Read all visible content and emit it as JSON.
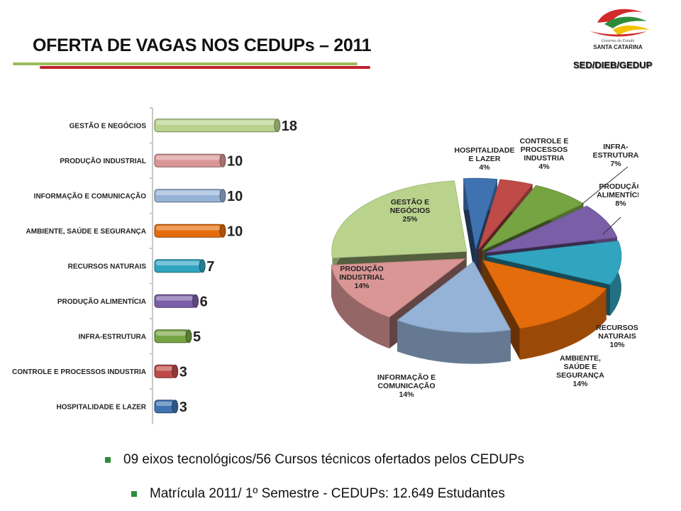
{
  "slide": {
    "title": "OFERTA DE VAGAS NOS CEDUPs – 2011",
    "org": "SED/DIEB/GEDUP",
    "logo": {
      "subtitle": "Governo do Estado",
      "name": "SANTA CATARINA"
    }
  },
  "bullets": [
    "09 eixos tecnológicos/56 Cursos técnicos ofertados pelos CEDUPs",
    "Matrícula 2011/ 1º Semestre - CEDUPs: 12.649 Estudantes"
  ],
  "chart_data": [
    {
      "type": "bar",
      "orientation": "horizontal",
      "categories": [
        "GESTÃO E NEGÓCIOS",
        "PRODUÇÃO INDUSTRIAL",
        "INFORMAÇÃO E COMUNICAÇÃO",
        "AMBIENTE, SAÚDE E SEGURANÇA",
        "RECURSOS NATURAIS",
        "PRODUÇÃO ALIMENTÍCIA",
        "INFRA-ESTRUTURA",
        "CONTROLE E PROCESSOS INDUSTRIA",
        "HOSPITALIDADE E LAZER"
      ],
      "values": [
        18,
        10,
        10,
        10,
        7,
        6,
        5,
        3,
        3
      ],
      "colors": [
        "#b9d38c",
        "#d99694",
        "#95b3d7",
        "#e46c0a",
        "#31a5c0",
        "#7a5ea8",
        "#77a442",
        "#be4b48",
        "#3f72b0"
      ],
      "xlim": [
        0,
        20
      ],
      "grid": false,
      "legend": "none"
    },
    {
      "type": "pie",
      "labels": [
        "HOSPITALIDADE E LAZER",
        "CONTROLE E PROCESSOS INDUSTRIA",
        "INFRA-ESTRUTURA",
        "PRODUÇÃO ALIMENTÍCIA",
        "RECURSOS NATURAIS",
        "AMBIENTE, SAÚDE E SEGURANÇA",
        "INFORMAÇÃO E COMUNICAÇÃO",
        "PRODUÇÃO INDUSTRIAL",
        "GESTÃO E NEGÓCIOS"
      ],
      "label_lines": [
        [
          "HOSPITALIDADE",
          "E LAZER"
        ],
        [
          "CONTROLE E",
          "PROCESSOS",
          "INDUSTRIA"
        ],
        [
          "INFRA-",
          "ESTRUTURA"
        ],
        [
          "PRODUÇÃO",
          "ALIMENTÍCIA"
        ],
        [
          "RECURSOS",
          "NATURAIS"
        ],
        [
          "AMBIENTE,",
          "SAÚDE E",
          "SEGURANÇA"
        ],
        [
          "INFORMAÇÃO E",
          "COMUNICAÇÃO"
        ],
        [
          "PRODUÇÃO",
          "INDUSTRIAL"
        ],
        [
          "GESTÃO E",
          "NEGÓCIOS"
        ]
      ],
      "percent_labels": [
        "4%",
        "4%",
        "7%",
        "8%",
        "10%",
        "14%",
        "14%",
        "14%",
        "25%"
      ],
      "values": [
        4,
        4,
        7,
        8,
        10,
        14,
        14,
        14,
        25
      ],
      "colors": [
        "#3f72b0",
        "#be4b48",
        "#77a442",
        "#7a5ea8",
        "#31a5c0",
        "#e46c0a",
        "#95b3d7",
        "#d99694",
        "#b9d38c"
      ],
      "style": "3d-exploded",
      "legend": "none"
    }
  ]
}
